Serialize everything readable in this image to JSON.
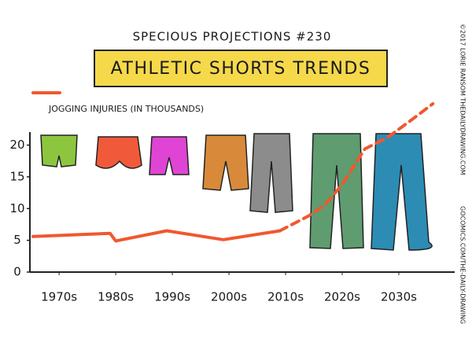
{
  "chart_data": {
    "type": "line",
    "header": "SPECIOUS PROJECTIONS #230",
    "title": "ATHLETIC SHORTS TRENDS",
    "credits": [
      "©2017 LORIE RANSOM   THEDAILYDRAWING.COM",
      "GOCOMICS.COM/THE-DAILY-DRAWING"
    ],
    "xlim": [
      1965.4,
      2035.7
    ],
    "xticks": [
      {
        "value": 1970,
        "label": "1970s"
      },
      {
        "value": 1980,
        "label": "1980s"
      },
      {
        "value": 1990,
        "label": "1990s"
      },
      {
        "value": 2000,
        "label": "2000s"
      },
      {
        "value": 2010,
        "label": "2010s"
      },
      {
        "value": 2020,
        "label": "2020s"
      },
      {
        "value": 2030,
        "label": "2030s"
      }
    ],
    "ylim": [
      0,
      27
    ],
    "yticks": [
      0,
      5,
      10,
      15,
      20
    ],
    "series": [
      {
        "name": "JOGGING INJURIES (IN THOUSANDS)",
        "color": "#f0582e",
        "x": [
          1965.4,
          1979,
          1980,
          1989,
          1999,
          2009
        ],
        "values": [
          5.6,
          6.1,
          4.9,
          6.5,
          5.1,
          6.5
        ]
      },
      {
        "color": "#f0582e",
        "style": "dashed",
        "x": [
          2014,
          2017,
          2020,
          2024,
          2028,
          2032,
          2036
        ],
        "values": [
          8.8,
          10.6,
          13.8,
          19.4,
          21.2,
          23.8,
          26.5
        ]
      }
    ]
  }
}
